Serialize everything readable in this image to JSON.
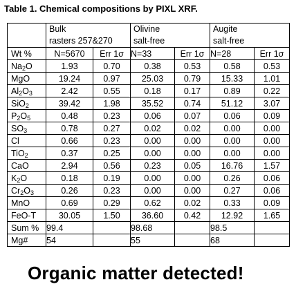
{
  "title": "Table 1. Chemical compositions by PIXL XRF.",
  "groups": [
    {
      "line1": "Bulk",
      "line2": "rasters 257&270"
    },
    {
      "line1": "Olivine",
      "line2": "salt-free"
    },
    {
      "line1": "Augite",
      "line2": "salt-free"
    }
  ],
  "header": {
    "label": "Wt %",
    "bulk_n": "N=5670",
    "bulk_err": "Err 1σ",
    "olivine_n": "N=33",
    "olivine_err": "Err 1σ",
    "augite_n": "N=28",
    "augite_err": "Err 1σ"
  },
  "rows": [
    {
      "oxide": "Na",
      "sub": "2",
      "tail": "O",
      "values": [
        "1.93",
        "0.70",
        "0.38",
        "0.53",
        "0.58",
        "0.53"
      ]
    },
    {
      "oxide": "MgO",
      "sub": "",
      "tail": "",
      "values": [
        "19.24",
        "0.97",
        "25.03",
        "0.79",
        "15.33",
        "1.01"
      ]
    },
    {
      "oxide": "Al",
      "sub": "2",
      "tail": "O",
      "sub2": "3",
      "values": [
        "2.42",
        "0.55",
        "0.18",
        "0.17",
        "0.89",
        "0.22"
      ]
    },
    {
      "oxide": "SiO",
      "sub": "2",
      "tail": "",
      "values": [
        "39.42",
        "1.98",
        "35.52",
        "0.74",
        "51.12",
        "3.07"
      ]
    },
    {
      "oxide": "P",
      "sub": "2",
      "tail": "O",
      "sub2": "5",
      "values": [
        "0.48",
        "0.23",
        "0.06",
        "0.07",
        "0.06",
        "0.09"
      ]
    },
    {
      "oxide": "SO",
      "sub": "3",
      "tail": "",
      "values": [
        "0.78",
        "0.27",
        "0.02",
        "0.02",
        "0.00",
        "0.00"
      ]
    },
    {
      "oxide": "Cl",
      "sub": "",
      "tail": "",
      "values": [
        "0.66",
        "0.23",
        "0.00",
        "0.00",
        "0.00",
        "0.00"
      ]
    },
    {
      "oxide": "TiO",
      "sub": "2",
      "tail": "",
      "values": [
        "0.37",
        "0.25",
        "0.00",
        "0.00",
        "0.00",
        "0.00"
      ]
    },
    {
      "oxide": "CaO",
      "sub": "",
      "tail": "",
      "values": [
        "2.94",
        "0.56",
        "0.23",
        "0.05",
        "16.76",
        "1.57"
      ]
    },
    {
      "oxide": "K",
      "sub": "2",
      "tail": "O",
      "values": [
        "0.18",
        "0.19",
        "0.00",
        "0.00",
        "0.26",
        "0.06"
      ]
    },
    {
      "oxide": "Cr",
      "sub": "2",
      "tail": "O",
      "sub2": "3",
      "values": [
        "0.26",
        "0.23",
        "0.00",
        "0.00",
        "0.27",
        "0.06"
      ]
    },
    {
      "oxide": "MnO",
      "sub": "",
      "tail": "",
      "values": [
        "0.69",
        "0.29",
        "0.62",
        "0.02",
        "0.33",
        "0.09"
      ]
    },
    {
      "oxide": "FeO-T",
      "sub": "",
      "tail": "",
      "values": [
        "30.05",
        "1.50",
        "36.60",
        "0.42",
        "12.92",
        "1.65"
      ]
    }
  ],
  "sum": {
    "label": "Sum %",
    "bulk": "99.4",
    "olivine": "98.68",
    "augite": "98.5"
  },
  "mg": {
    "label": "Mg#",
    "bulk": "54",
    "olivine": "55",
    "augite": "68"
  },
  "banner": "Organic matter detected!"
}
